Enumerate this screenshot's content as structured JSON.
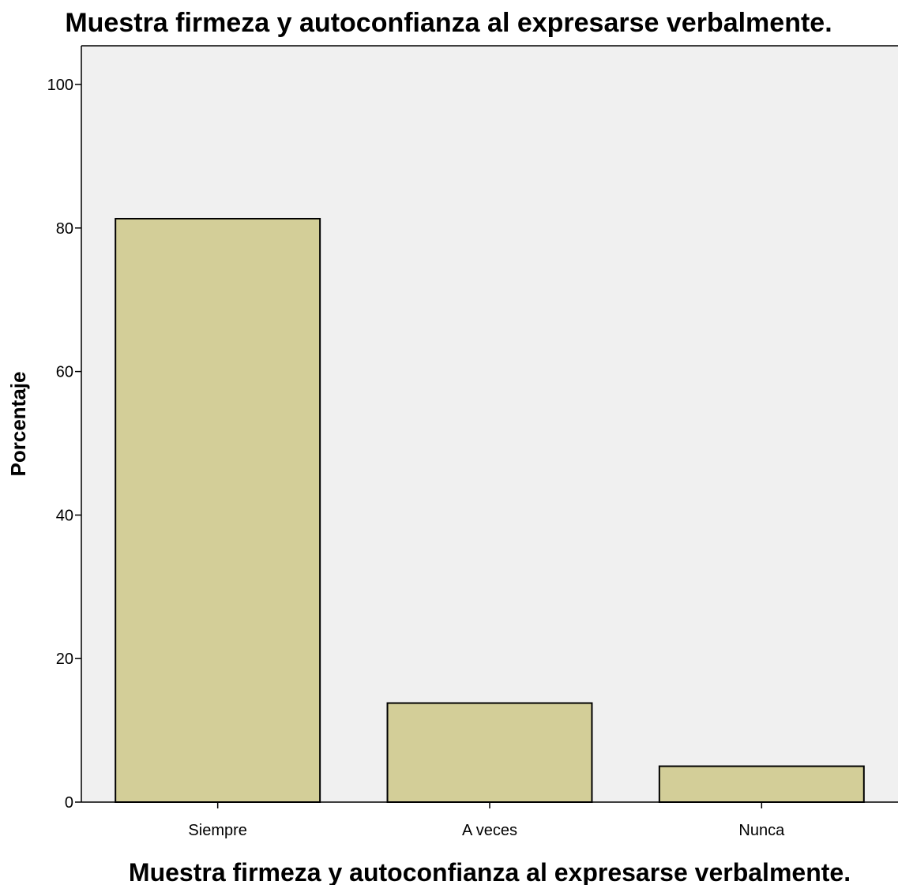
{
  "chart_data": {
    "type": "bar",
    "title": "Muestra firmeza y autoconfianza al expresarse verbalmente.",
    "xlabel": "Muestra firmeza y autoconfianza al expresarse verbalmente.",
    "ylabel": "Porcentaje",
    "categories": [
      "Siempre",
      "A veces",
      "Nunca"
    ],
    "values": [
      81.3,
      13.8,
      5.0
    ],
    "ylim": [
      0,
      100
    ],
    "yticks": [
      0,
      20,
      40,
      60,
      80,
      100
    ],
    "grid": false,
    "legend": "none",
    "colors": {
      "bar_fill": "#D3CE98",
      "bar_stroke": "#000000",
      "plot_background": "#F0F0F0",
      "axis": "#000000"
    }
  }
}
